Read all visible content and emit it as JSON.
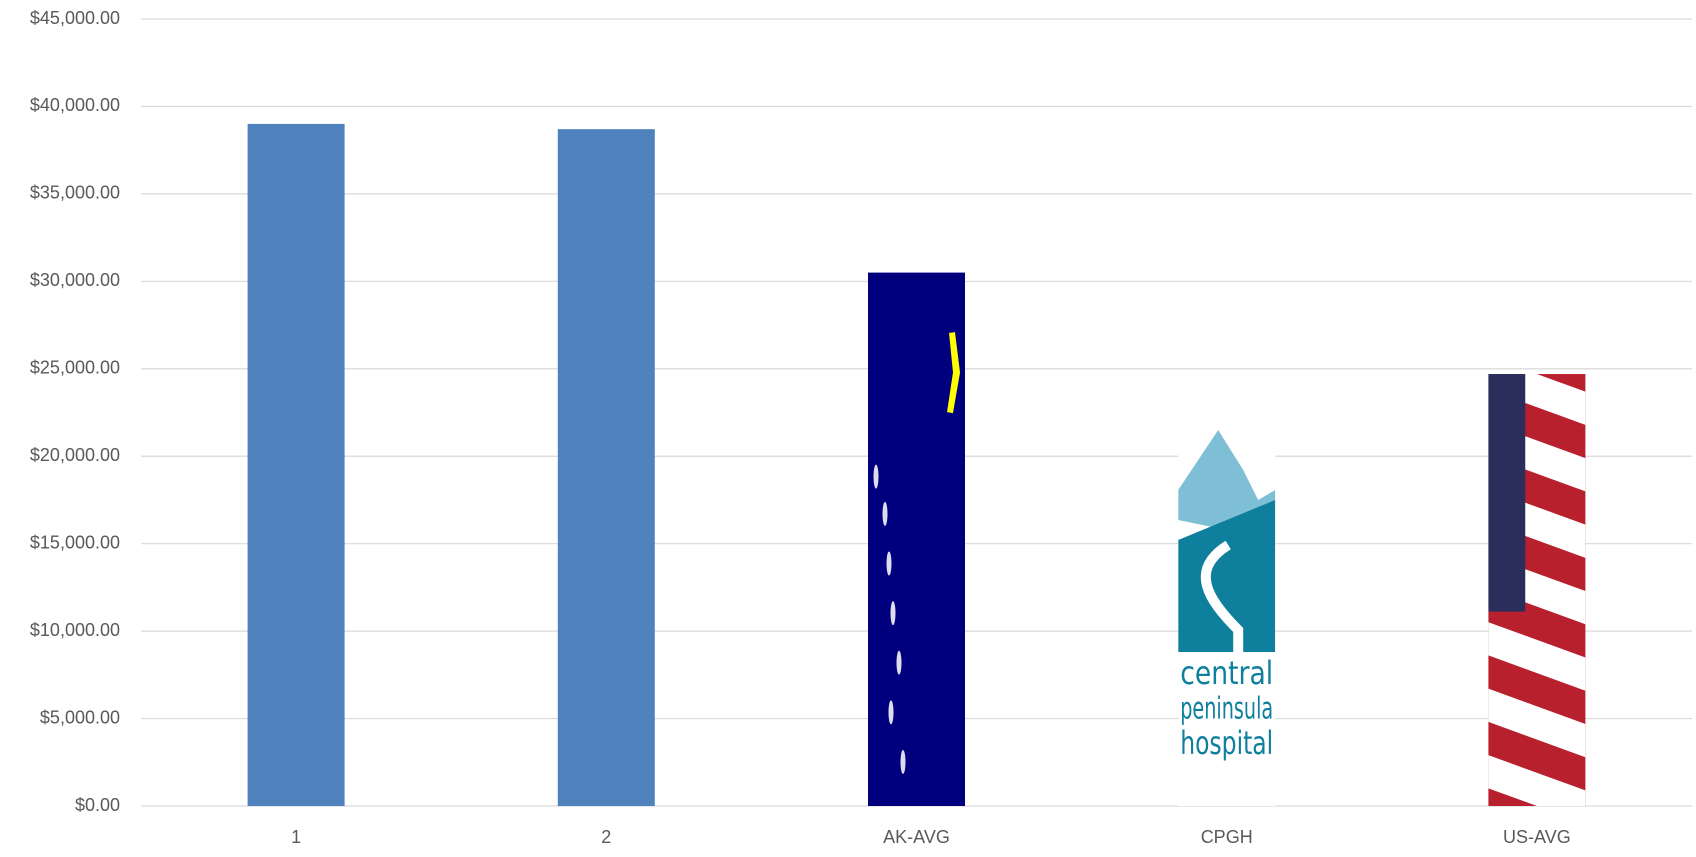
{
  "chart_data": {
    "type": "bar",
    "categories": [
      "1",
      "2",
      "AK-AVG",
      "CPGH",
      "US-AVG"
    ],
    "values": [
      39000,
      38700,
      30500,
      21500,
      24700
    ],
    "colors": [
      "#4f81bd",
      "#4f81bd",
      "#00007f",
      "#ffffff",
      "#b8202e"
    ],
    "ylim": [
      0,
      45000
    ],
    "yticks": [
      {
        "value": 0,
        "label": "$0.00"
      },
      {
        "value": 5000,
        "label": "$5,000.00"
      },
      {
        "value": 10000,
        "label": "$10,000.00"
      },
      {
        "value": 15000,
        "label": "$15,000.00"
      },
      {
        "value": 20000,
        "label": "$20,000.00"
      },
      {
        "value": 25000,
        "label": "$25,000.00"
      },
      {
        "value": 30000,
        "label": "$30,000.00"
      },
      {
        "value": 35000,
        "label": "$35,000.00"
      },
      {
        "value": 40000,
        "label": "$40,000.00"
      },
      {
        "value": 45000,
        "label": "$45,000.00"
      }
    ],
    "grid": true,
    "cpgh_logo_text": [
      "central",
      "peninsula",
      "hospital"
    ]
  }
}
